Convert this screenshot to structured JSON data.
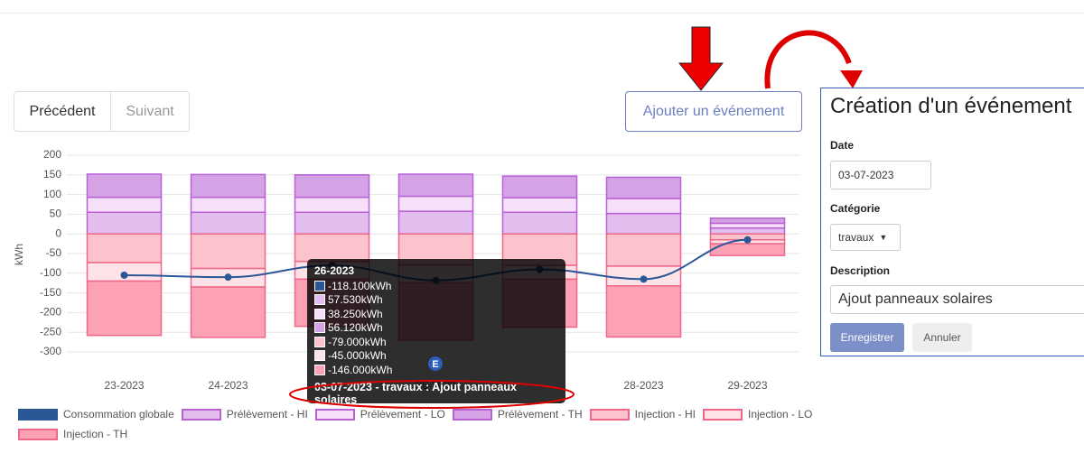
{
  "toolbar": {
    "previous": "Précédent",
    "next": "Suivant",
    "add_event": "Ajouter un événement"
  },
  "chart_data": {
    "type": "bar",
    "stacked": true,
    "y_label": "kWh",
    "categories": [
      "23-2023",
      "24-2023",
      null,
      "26-2023",
      null,
      "28-2023",
      "29-2023"
    ],
    "ylim": [
      -300,
      200
    ],
    "yticks": [
      200,
      150,
      100,
      50,
      0,
      -50,
      -100,
      -150,
      -200,
      -250,
      -300
    ],
    "grid": true,
    "series": [
      {
        "name": "Consommation globale",
        "type": "line",
        "color": "#2b5797",
        "values": [
          -105,
          -110,
          -80,
          -118.1,
          -90,
          -115,
          -15
        ]
      },
      {
        "name": "Prélèvement - HI",
        "type": "bar",
        "color": "#e3bdee",
        "border_color": "#b862d6",
        "values": [
          55,
          55,
          55,
          57.53,
          55,
          52,
          15
        ]
      },
      {
        "name": "Prélèvement - LO",
        "type": "bar",
        "color": "#f6e0f9",
        "border_color": "#b862d6",
        "values": [
          38,
          38,
          38,
          38.25,
          37,
          38,
          12
        ]
      },
      {
        "name": "Prélèvement - TH",
        "type": "bar",
        "color": "#d6a2e6",
        "border_color": "#b862d6",
        "values": [
          59,
          58,
          57,
          56.12,
          55,
          54,
          13
        ]
      },
      {
        "name": "Injection - HI",
        "type": "bar",
        "color": "#fdc3cd",
        "border_color": "#f0678a",
        "values": [
          -73,
          -88,
          -70,
          -79,
          -80,
          -82,
          -15
        ]
      },
      {
        "name": "Injection - LO",
        "type": "bar",
        "color": "#fde3e8",
        "border_color": "#f0678a",
        "values": [
          -47,
          -47,
          -45,
          -45,
          -35,
          -50,
          -10
        ]
      },
      {
        "name": "Injection - TH",
        "type": "bar",
        "color": "#fca2b4",
        "border_color": "#f0678a",
        "values": [
          -138,
          -128,
          -120,
          -146,
          -122,
          -130,
          -30
        ]
      }
    ],
    "tooltip": {
      "title": "26-2023",
      "items": [
        "-118.100kWh",
        "57.530kWh",
        "38.250kWh",
        "56.120kWh",
        "-79.000kWh",
        "-45.000kWh",
        "-146.000kWh"
      ],
      "event": "03-07-2023 - travaux : Ajout panneaux solaires"
    },
    "event_marker": "E"
  },
  "form": {
    "title": "Création d'un événement",
    "date_label": "Date",
    "date_value": "03-07-2023",
    "category_label": "Catégorie",
    "category_value": "travaux",
    "description_label": "Description",
    "description_value": "Ajout panneaux solaires",
    "save": "Enregistrer",
    "cancel": "Annuler"
  }
}
